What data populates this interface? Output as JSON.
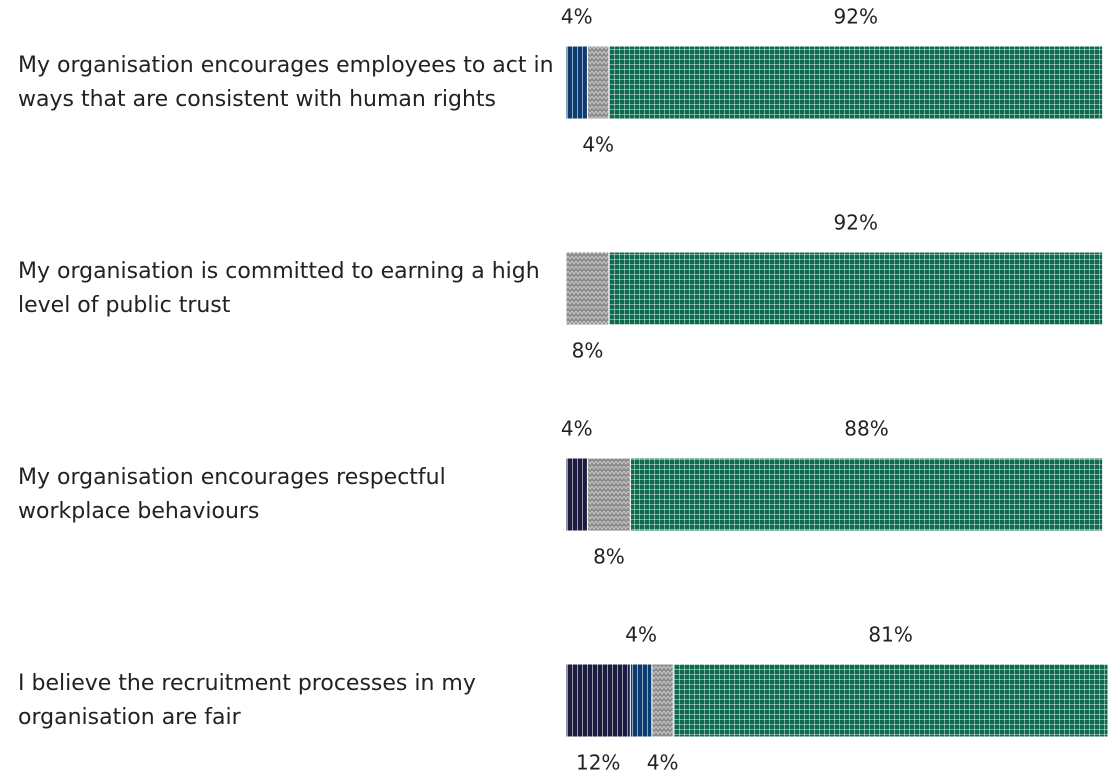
{
  "chart_data": {
    "type": "stacked-bar-horizontal",
    "categories": [
      "My organisation encourages employees to act in ways that are consistent with human rights",
      "My organisation is committed to earning a high level of public trust",
      "My organisation encourages respectful workplace behaviours",
      "I believe the recruitment processes in my organisation are fair"
    ],
    "series": [
      {
        "color": "#1c1c40",
        "values": [
          null,
          null,
          4,
          12
        ],
        "value_labels": [
          null,
          null,
          "4%",
          "12%"
        ]
      },
      {
        "color": "#0d3c70",
        "values": [
          4,
          null,
          null,
          4
        ],
        "value_labels": [
          "4%",
          null,
          null,
          "4%"
        ]
      },
      {
        "color": "#8c8c8c",
        "values": [
          4,
          8,
          8,
          4
        ],
        "value_labels": [
          "4%",
          "8%",
          "8%",
          "4%"
        ]
      },
      {
        "color": "#0f6b50",
        "values": [
          92,
          92,
          88,
          81
        ],
        "value_labels": [
          "92%",
          "92%",
          "88%",
          "81%"
        ]
      }
    ]
  }
}
